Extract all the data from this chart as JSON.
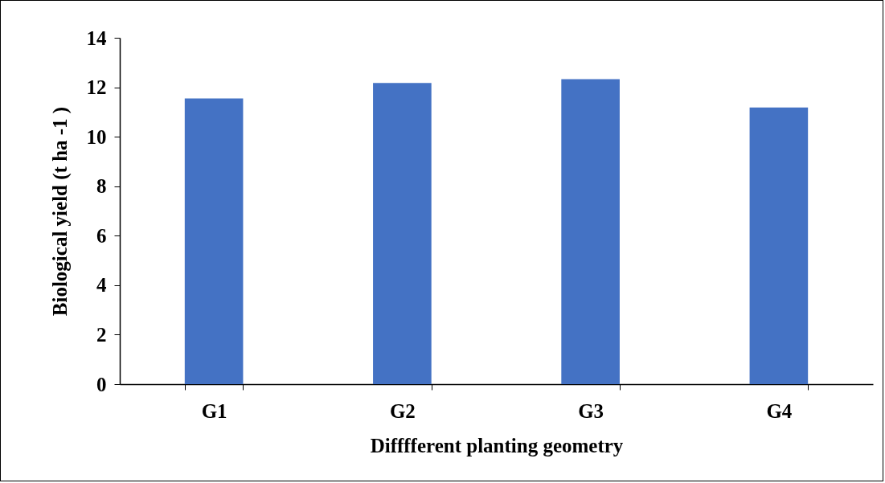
{
  "chart_data": {
    "type": "bar",
    "xlabel": "Difffferent planting geometry",
    "ylabel": "Biological yield (t ha -1 )",
    "categories": [
      "G1",
      "G2",
      "G3",
      "G4"
    ],
    "values": [
      11.55,
      12.17,
      12.33,
      11.18
    ],
    "color": "#4472c4",
    "ylim": [
      0,
      14
    ],
    "yticks": [
      0,
      2,
      4,
      6,
      8,
      10,
      12,
      14
    ],
    "grid": false,
    "legend": false
  }
}
